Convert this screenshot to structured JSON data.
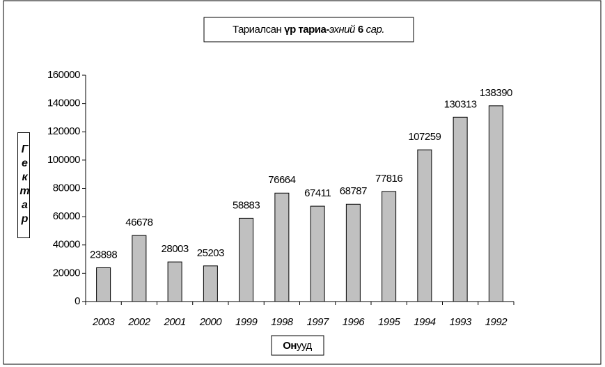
{
  "chart_data": {
    "type": "bar",
    "title": [
      "Тариалсан",
      "үр тариа-",
      "эхний",
      "6",
      "сар."
    ],
    "y_label": "Гектар",
    "x_label": [
      "Он",
      "ууд"
    ],
    "categories": [
      "2003",
      "2002",
      "2001",
      "2000",
      "1999",
      "1998",
      "1997",
      "1996",
      "1995",
      "1994",
      "1993",
      "1992"
    ],
    "values": [
      23898,
      46678,
      28003,
      25203,
      58883,
      76664,
      67411,
      68787,
      77816,
      107259,
      130313,
      138390
    ],
    "color": "#c0c0c0",
    "ylim": [
      0,
      160000
    ],
    "yticks": [
      0,
      20000,
      40000,
      60000,
      80000,
      100000,
      120000,
      140000,
      160000
    ],
    "grid": false
  }
}
